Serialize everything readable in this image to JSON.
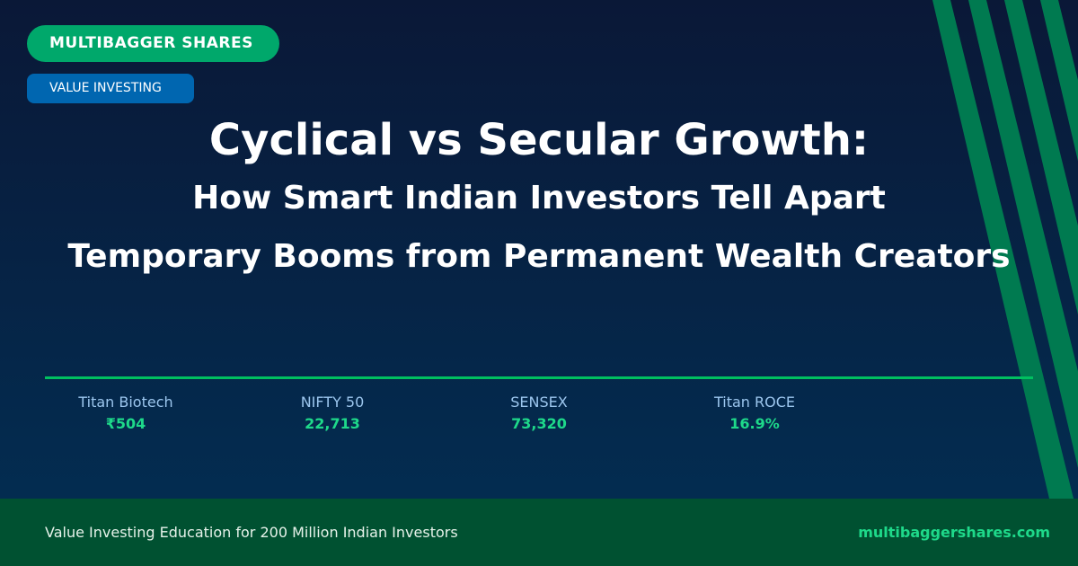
{
  "badges": {
    "brand": "MULTIBAGGER SHARES",
    "category": "VALUE INVESTING"
  },
  "title": {
    "line1": "Cyclical vs Secular Growth:",
    "line2": "How Smart Indian Investors Tell Apart",
    "line3": "Temporary Booms from Permanent Wealth Creators"
  },
  "stats": [
    {
      "label": "Titan Biotech",
      "value": "₹504"
    },
    {
      "label": "NIFTY 50",
      "value": "22,713"
    },
    {
      "label": "SENSEX",
      "value": "73,320"
    },
    {
      "label": "Titan ROCE",
      "value": "16.9%"
    }
  ],
  "footer": {
    "tagline": "Value Investing Education for 200 Million Indian Investors",
    "site": "multibaggershares.com"
  },
  "colors": {
    "accent_green": "#00a86b",
    "accent_blue": "#0066b0",
    "stripe": "#007a50",
    "footer_bg": "#005131",
    "value_green": "#1ed98a"
  }
}
